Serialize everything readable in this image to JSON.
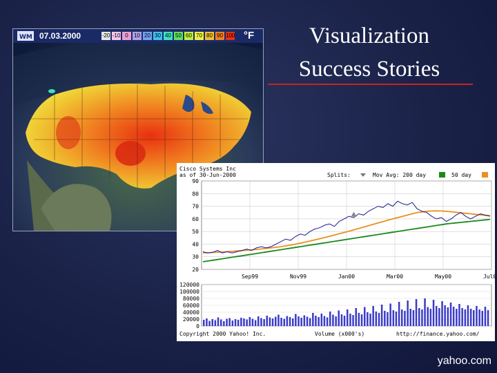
{
  "slide": {
    "title_line1": "Visualization",
    "title_line2": "Success Stories",
    "footer": "yahoo.com"
  },
  "map": {
    "date": "07.03.2000",
    "unit": "°F",
    "legend": [
      "-20",
      "-10",
      "0",
      "10",
      "20",
      "30",
      "40",
      "50",
      "60",
      "70",
      "80",
      "90",
      "100"
    ],
    "legend_colors": [
      "#e6e6e6",
      "#f2c8e8",
      "#e8a0d0",
      "#b0a0e8",
      "#70a0f0",
      "#40c0f0",
      "#40e0c0",
      "#60e060",
      "#c0f040",
      "#f0f040",
      "#f0c030",
      "#f08020",
      "#e83010"
    ]
  },
  "chart_data": [
    {
      "type": "line",
      "title_line1": "Cisco Systems Inc",
      "title_line2": "as of 30-Jun-2000",
      "legend": {
        "splits_label": "Splits:",
        "mov_avg_label": "Mov Avg: 200 day",
        "fifty_day_label": "50 day"
      },
      "x_ticks": [
        "Sep99",
        "Nov99",
        "Jan00",
        "Mar00",
        "May00",
        "Jul00"
      ],
      "y_ticks": [
        20,
        30,
        40,
        50,
        60,
        70,
        80,
        90
      ],
      "ylim": [
        20,
        90
      ],
      "series": [
        {
          "name": "",
          "color": "#1a1a8a",
          "values": [
            34,
            33,
            33.5,
            35,
            33,
            34,
            33,
            34,
            35,
            36,
            35,
            37,
            38,
            37,
            38,
            40,
            42,
            44,
            43,
            46,
            48,
            47,
            50,
            52,
            53,
            55,
            56,
            54,
            58,
            60,
            62,
            61,
            64,
            63,
            66,
            68,
            70,
            69,
            72,
            70,
            74,
            72,
            71,
            73,
            68,
            66,
            65,
            62,
            60,
            61,
            58,
            60,
            63,
            65,
            62,
            60,
            62,
            64,
            63,
            62
          ]
        },
        {
          "name": "Mov Avg: 200 day",
          "color": "#1a8a1a",
          "values": [
            26,
            26.6,
            27.2,
            27.8,
            28.4,
            29,
            29.6,
            30.2,
            30.8,
            31.4,
            32,
            32.6,
            33.2,
            33.8,
            34.4,
            35,
            35.6,
            36.2,
            36.8,
            37.4,
            38,
            38.6,
            39.2,
            39.8,
            40.4,
            41,
            41.6,
            42.2,
            42.8,
            43.4,
            44,
            44.6,
            45.2,
            45.8,
            46.4,
            47,
            47.6,
            48.2,
            48.8,
            49.4,
            50,
            50.6,
            51.2,
            51.8,
            52.4,
            53,
            53.6,
            54.2,
            54.8,
            55.4,
            56,
            56.4,
            56.8,
            57.2,
            57.6,
            58,
            58.4,
            58.8,
            59.2,
            59.6
          ]
        },
        {
          "name": "50 day",
          "color": "#e89020",
          "values": [
            33,
            33.2,
            33.4,
            33.6,
            33.8,
            34,
            34.3,
            34.6,
            34.9,
            35.2,
            35.5,
            35.8,
            36.2,
            36.6,
            37,
            37.5,
            38,
            38.6,
            39.2,
            40,
            40.8,
            41.6,
            42.5,
            43.4,
            44.3,
            45.2,
            46.2,
            47.2,
            48.2,
            49.2,
            50.2,
            51.3,
            52.4,
            53.5,
            54.6,
            55.7,
            56.8,
            57.9,
            59,
            60,
            61,
            62,
            63,
            64,
            65,
            65.5,
            66,
            66.2,
            66.3,
            66.2,
            66,
            65.6,
            65.2,
            64.8,
            64.4,
            64,
            63.6,
            63.2,
            62.8,
            62.6
          ]
        }
      ],
      "splits": [
        {
          "index": 31,
          "value": 64
        }
      ]
    },
    {
      "type": "bar",
      "xlabel": "Volume (x000's)",
      "y_ticks": [
        "0",
        "20000",
        "40000",
        "60000",
        "80000",
        "100000",
        "120000"
      ],
      "ylim": [
        0,
        120000
      ],
      "color": "#3a3ac8",
      "values": [
        18000,
        22000,
        15000,
        20000,
        17000,
        25000,
        19000,
        14000,
        21000,
        23000,
        16000,
        20000,
        18000,
        24000,
        22000,
        19000,
        26000,
        21000,
        17000,
        28000,
        23000,
        20000,
        30000,
        25000,
        22000,
        27000,
        33000,
        24000,
        21000,
        29000,
        26000,
        22000,
        35000,
        28000,
        24000,
        31000,
        27000,
        23000,
        38000,
        30000,
        26000,
        36000,
        29000,
        25000,
        42000,
        33000,
        28000,
        45000,
        34000,
        30000,
        48000,
        36000,
        32000,
        52000,
        38000,
        34000,
        55000,
        40000,
        36000,
        58000,
        42000,
        38000,
        62000,
        44000,
        40000,
        65000,
        46000,
        42000,
        70000,
        48000,
        44000,
        74000,
        50000,
        46000,
        78000,
        52000,
        48000,
        80000,
        55000,
        50000,
        76000,
        58000,
        52000,
        72000,
        60000,
        54000,
        68000,
        56000,
        50000,
        64000,
        52000,
        48000,
        60000,
        50000,
        46000,
        58000,
        48000,
        44000,
        56000,
        46000
      ]
    }
  ],
  "stock_footer": {
    "copyright": "Copyright 2000 Yahoo! Inc.",
    "volume_label": "Volume (x000's)",
    "url": "http://finance.yahoo.com/"
  }
}
